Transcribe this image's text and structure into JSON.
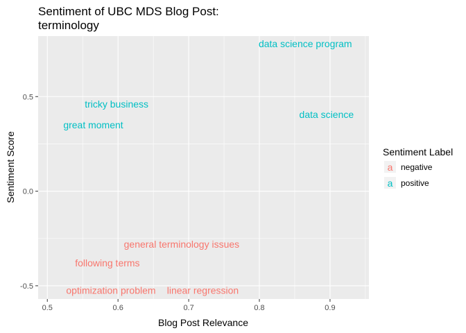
{
  "chart_data": {
    "type": "scatter",
    "mark": "text",
    "title_lines": [
      "Sentiment of UBC MDS Blog Post:",
      "terminology"
    ],
    "xlabel": "Blog Post Relevance",
    "ylabel": "Sentiment Score",
    "xlim": [
      0.487,
      0.955
    ],
    "ylim": [
      -0.57,
      0.82
    ],
    "x_ticks": [
      {
        "value": 0.5,
        "label": "0.5"
      },
      {
        "value": 0.6,
        "label": "0.6"
      },
      {
        "value": 0.7,
        "label": "0.7"
      },
      {
        "value": 0.8,
        "label": "0.8"
      },
      {
        "value": 0.9,
        "label": "0.9"
      }
    ],
    "y_ticks": [
      {
        "value": -0.5,
        "label": "-0.5"
      },
      {
        "value": 0.0,
        "label": "0.0"
      },
      {
        "value": 0.5,
        "label": "0.5"
      }
    ],
    "grid": true,
    "legend": {
      "title": "Sentiment Label",
      "placement": "right",
      "key_glyph": "a",
      "entries": [
        {
          "label": "negative",
          "color": "#F8766D"
        },
        {
          "label": "positive",
          "color": "#00BFC4"
        }
      ]
    },
    "colors": {
      "negative": "#F8766D",
      "positive": "#00BFC4",
      "panel": "#EBEBEB",
      "grid": "#FFFFFF"
    },
    "points": [
      {
        "label": "data science program",
        "x": 0.865,
        "y": 0.78,
        "sentiment": "positive"
      },
      {
        "label": "tricky business",
        "x": 0.598,
        "y": 0.46,
        "sentiment": "positive"
      },
      {
        "label": "great moment",
        "x": 0.565,
        "y": 0.35,
        "sentiment": "positive"
      },
      {
        "label": "data science",
        "x": 0.895,
        "y": 0.405,
        "sentiment": "positive"
      },
      {
        "label": "general terminology issues",
        "x": 0.69,
        "y": -0.28,
        "sentiment": "negative"
      },
      {
        "label": "following terms",
        "x": 0.585,
        "y": -0.38,
        "sentiment": "negative"
      },
      {
        "label": "optimization problem",
        "x": 0.59,
        "y": -0.525,
        "sentiment": "negative"
      },
      {
        "label": "linear regression",
        "x": 0.72,
        "y": -0.525,
        "sentiment": "negative"
      }
    ]
  }
}
